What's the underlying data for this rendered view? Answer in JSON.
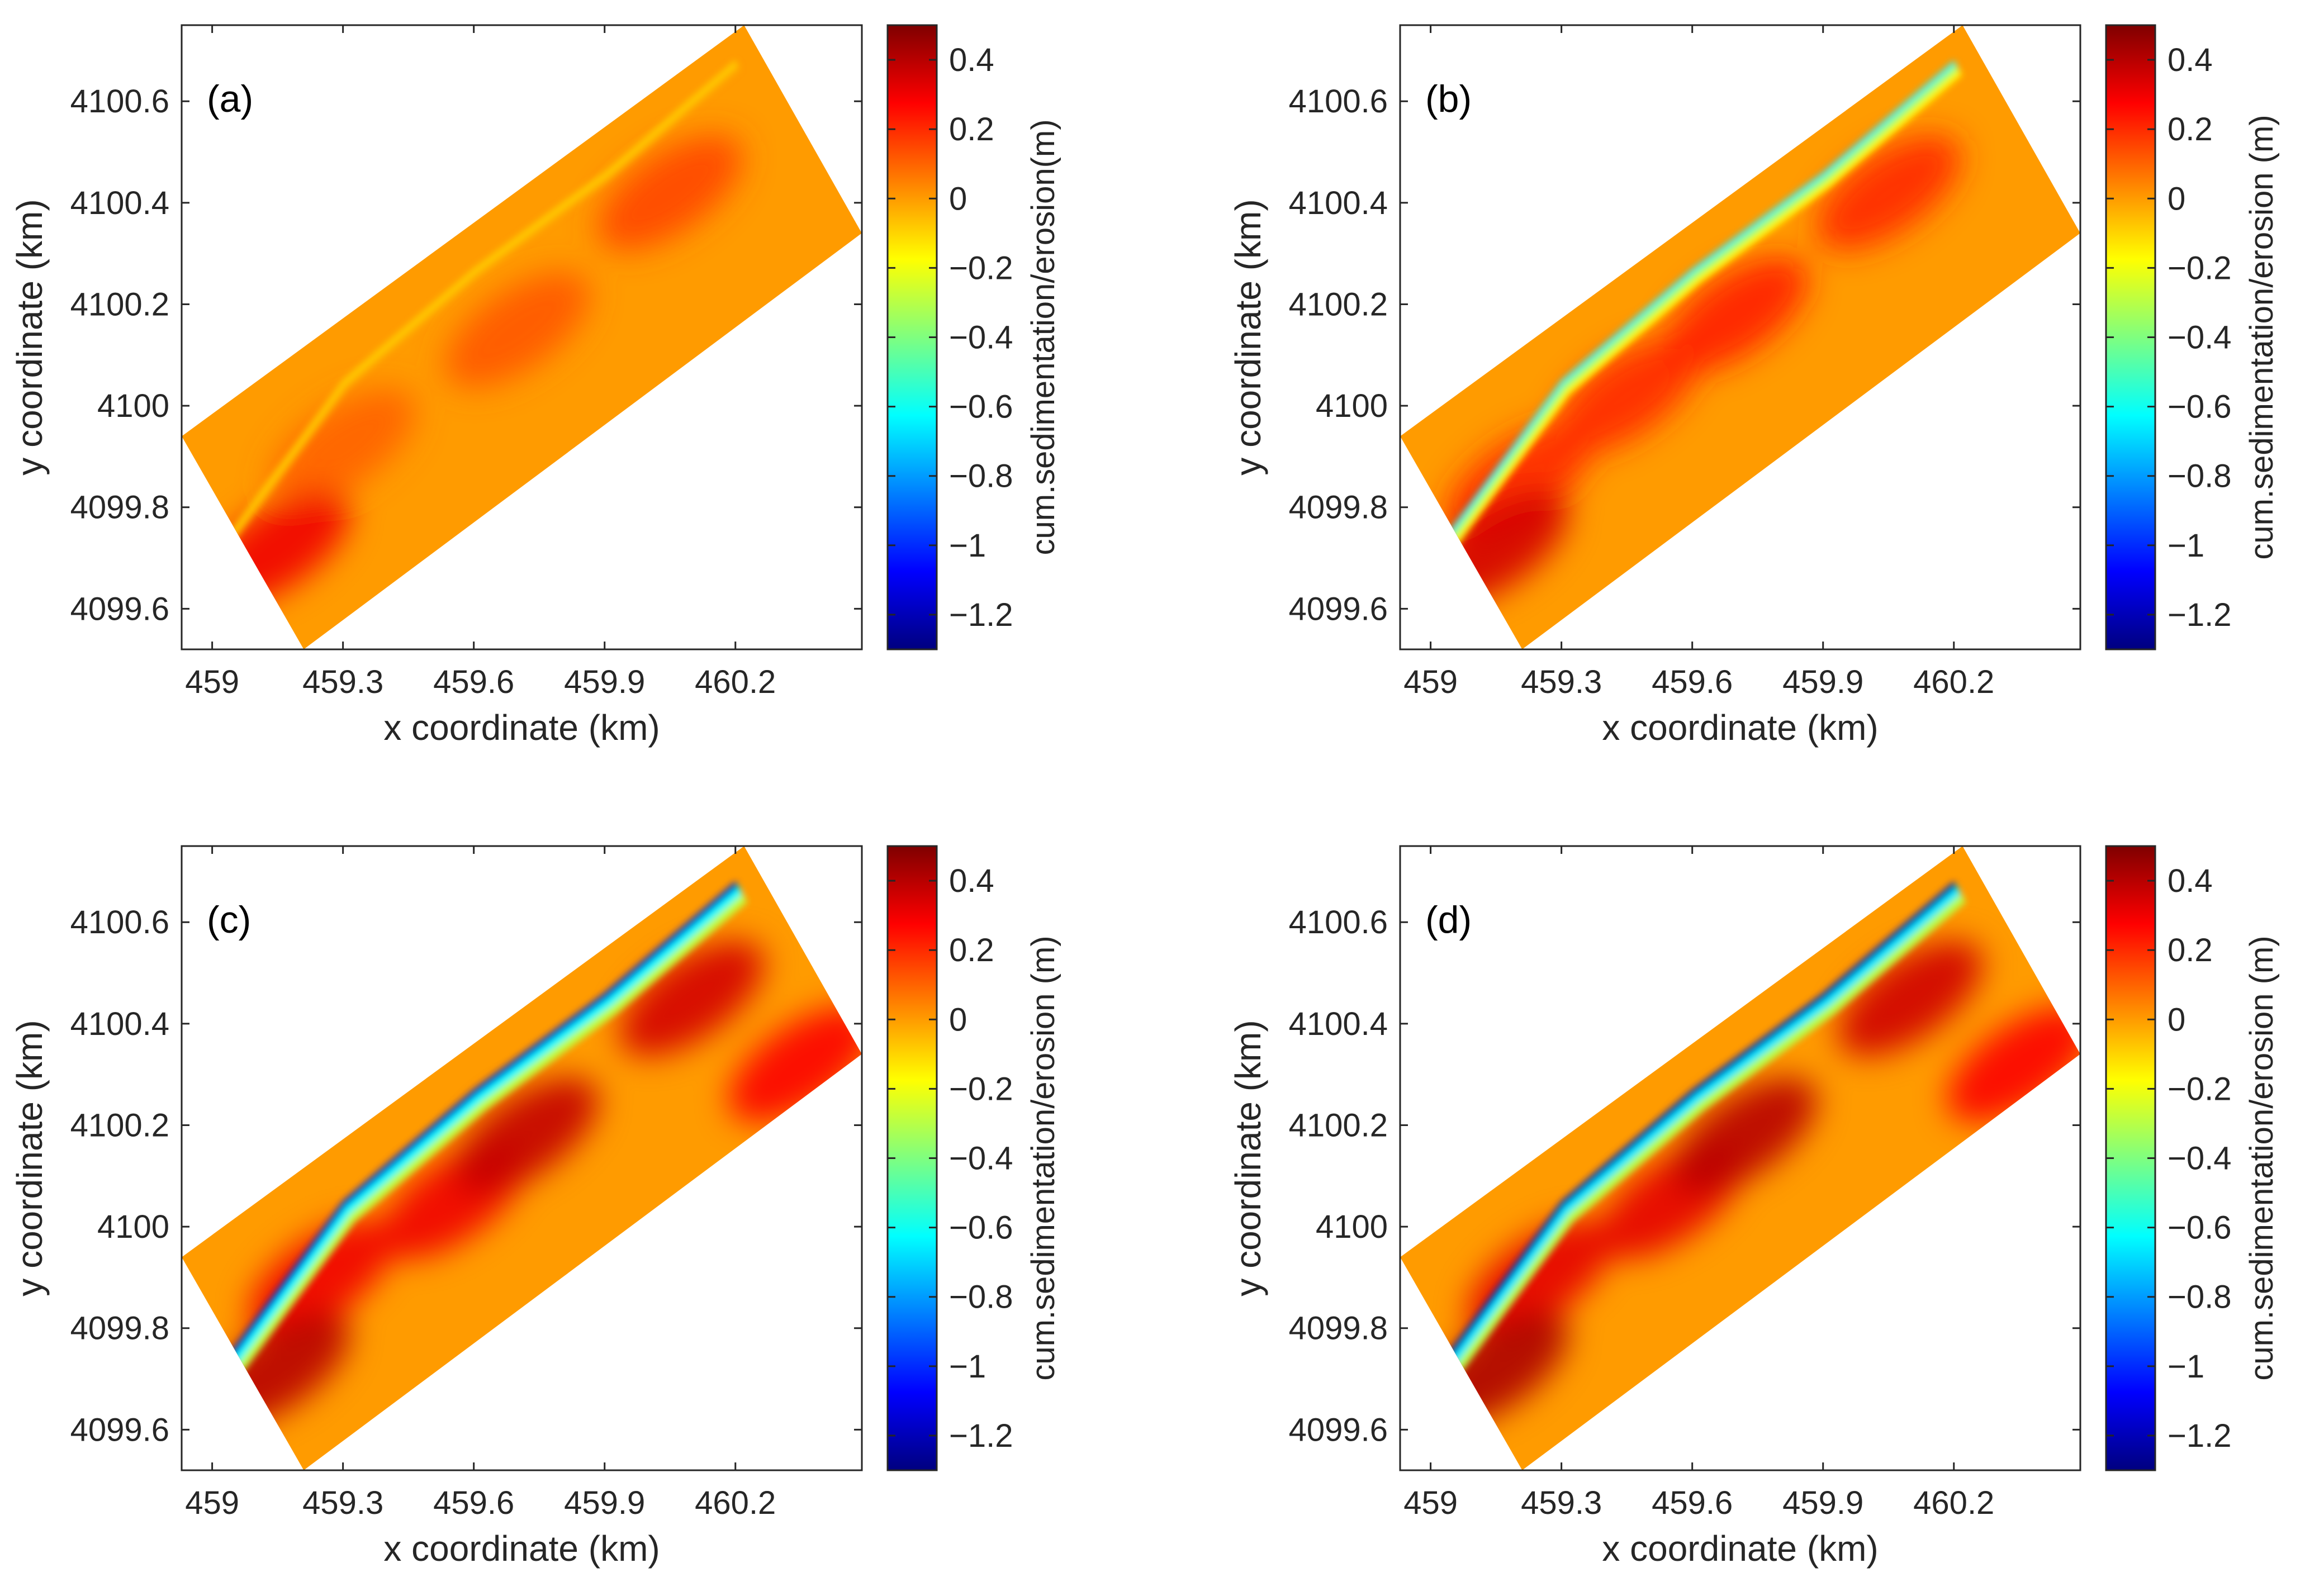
{
  "figure": {
    "colormap": [
      "#00007f",
      "#0000ff",
      "#007fff",
      "#00ffff",
      "#7fff7f",
      "#ffff00",
      "#ff7f00",
      "#ff0000",
      "#7f0000"
    ],
    "colors": {
      "domain_fill": "#ff9500",
      "frame": "#262626",
      "text": "#262626"
    }
  },
  "chart_data": [
    {
      "type": "heatmap",
      "panel_label": "(a)",
      "xlabel": "x coordinate (km)",
      "ylabel": "y coordinate (km)",
      "colorbar_label": "cum.sedimentation/erosion(m)",
      "xlim": [
        458.93,
        460.49
      ],
      "ylim": [
        4099.52,
        4100.75
      ],
      "xticks": [
        459,
        459.3,
        459.6,
        459.9,
        460.2
      ],
      "xtick_labels": [
        "459",
        "459.3",
        "459.6",
        "459.9",
        "460.2"
      ],
      "yticks": [
        4099.6,
        4099.8,
        4100,
        4100.2,
        4100.4,
        4100.6
      ],
      "ytick_labels": [
        "4099.6",
        "4099.8",
        "4100",
        "4100.2",
        "4100.4",
        "4100.6"
      ],
      "clim": [
        -1.3,
        0.5
      ],
      "cticks": [
        0.4,
        0.2,
        0,
        -0.2,
        -0.4,
        -0.6,
        -0.8,
        -1,
        -1.2
      ],
      "ctick_labels": [
        "0.4",
        "0.2",
        "0",
        "−0.2",
        "−0.4",
        "−0.6",
        "−0.8",
        "−1",
        "−1.2"
      ],
      "domain_polygon": [
        [
          458.93,
          4099.94
        ],
        [
          460.22,
          4100.75
        ],
        [
          460.49,
          4100.34
        ],
        [
          459.21,
          4099.52
        ]
      ],
      "shoreline": [
        [
          459.04,
          4099.75
        ],
        [
          459.3,
          4100.05
        ],
        [
          459.6,
          4100.27
        ],
        [
          459.9,
          4100.46
        ],
        [
          460.2,
          4100.68
        ]
      ],
      "nearshore_band": {
        "min_value": -0.12,
        "band_width_km": 0.02
      },
      "hotspots": [
        [
          459.3,
          4099.92,
          0.1
        ],
        [
          459.7,
          4100.15,
          0.12
        ],
        [
          460.05,
          4100.42,
          0.15
        ],
        [
          459.15,
          4099.72,
          0.3
        ]
      ]
    },
    {
      "type": "heatmap",
      "panel_label": "(b)",
      "xlabel": "x coordinate (km)",
      "ylabel": "y coordinate (km)",
      "colorbar_label": "cum.sedimentation/erosion (m)",
      "xlim": [
        458.93,
        460.49
      ],
      "ylim": [
        4099.52,
        4100.75
      ],
      "xticks": [
        459,
        459.3,
        459.6,
        459.9,
        460.2
      ],
      "xtick_labels": [
        "459",
        "459.3",
        "459.6",
        "459.9",
        "460.2"
      ],
      "yticks": [
        4099.6,
        4099.8,
        4100,
        4100.2,
        4100.4,
        4100.6
      ],
      "ytick_labels": [
        "4099.6",
        "4099.8",
        "4100",
        "4100.2",
        "4100.4",
        "4100.6"
      ],
      "clim": [
        -1.3,
        0.5
      ],
      "cticks": [
        0.4,
        0.2,
        0,
        -0.2,
        -0.4,
        -0.6,
        -0.8,
        -1,
        -1.2
      ],
      "ctick_labels": [
        "0.4",
        "0.2",
        "0",
        "−0.2",
        "−0.4",
        "−0.6",
        "−0.8",
        "−1",
        "−1.2"
      ],
      "domain_polygon": [
        [
          458.93,
          4099.94
        ],
        [
          460.22,
          4100.75
        ],
        [
          460.49,
          4100.34
        ],
        [
          459.21,
          4099.52
        ]
      ],
      "shoreline": [
        [
          459.04,
          4099.75
        ],
        [
          459.3,
          4100.05
        ],
        [
          459.6,
          4100.27
        ],
        [
          459.9,
          4100.46
        ],
        [
          460.2,
          4100.68
        ]
      ],
      "nearshore_band": {
        "min_value": -0.65,
        "band_width_km": 0.035
      },
      "hotspots": [
        [
          459.2,
          4099.85,
          0.2
        ],
        [
          459.45,
          4100.02,
          0.2
        ],
        [
          459.7,
          4100.18,
          0.22
        ],
        [
          460.05,
          4100.42,
          0.2
        ],
        [
          459.15,
          4099.72,
          0.35
        ]
      ]
    },
    {
      "type": "heatmap",
      "panel_label": "(c)",
      "xlabel": "x coordinate (km)",
      "ylabel": "y coordinate (km)",
      "colorbar_label": "cum.sedimentation/erosion (m)",
      "xlim": [
        458.93,
        460.49
      ],
      "ylim": [
        4099.52,
        4100.75
      ],
      "xticks": [
        459,
        459.3,
        459.6,
        459.9,
        460.2
      ],
      "xtick_labels": [
        "459",
        "459.3",
        "459.6",
        "459.9",
        "460.2"
      ],
      "yticks": [
        4099.6,
        4099.8,
        4100,
        4100.2,
        4100.4,
        4100.6
      ],
      "ytick_labels": [
        "4099.6",
        "4099.8",
        "4100",
        "4100.2",
        "4100.4",
        "4100.6"
      ],
      "clim": [
        -1.3,
        0.5
      ],
      "cticks": [
        0.4,
        0.2,
        0,
        -0.2,
        -0.4,
        -0.6,
        -0.8,
        -1,
        -1.2
      ],
      "ctick_labels": [
        "0.4",
        "0.2",
        "0",
        "−0.2",
        "−0.4",
        "−0.6",
        "−0.8",
        "−1",
        "−1.2"
      ],
      "domain_polygon": [
        [
          458.93,
          4099.94
        ],
        [
          460.22,
          4100.75
        ],
        [
          460.49,
          4100.34
        ],
        [
          459.21,
          4099.52
        ]
      ],
      "shoreline": [
        [
          459.04,
          4099.75
        ],
        [
          459.3,
          4100.05
        ],
        [
          459.6,
          4100.27
        ],
        [
          459.9,
          4100.46
        ],
        [
          460.2,
          4100.68
        ]
      ],
      "nearshore_band": {
        "min_value": -1.15,
        "band_width_km": 0.05
      },
      "hotspots": [
        [
          459.25,
          4099.9,
          0.3
        ],
        [
          459.55,
          4100.05,
          0.3
        ],
        [
          459.72,
          4100.18,
          0.38
        ],
        [
          460.1,
          4100.45,
          0.35
        ],
        [
          460.35,
          4100.32,
          0.28
        ],
        [
          459.15,
          4099.72,
          0.4
        ]
      ]
    },
    {
      "type": "heatmap",
      "panel_label": "(d)",
      "xlabel": "x coordinate (km)",
      "ylabel": "y coordinate (km)",
      "colorbar_label": "cum.sedimentation/erosion (m)",
      "xlim": [
        458.93,
        460.49
      ],
      "ylim": [
        4099.52,
        4100.75
      ],
      "xticks": [
        459,
        459.3,
        459.6,
        459.9,
        460.2
      ],
      "xtick_labels": [
        "459",
        "459.3",
        "459.6",
        "459.9",
        "460.2"
      ],
      "yticks": [
        4099.6,
        4099.8,
        4100,
        4100.2,
        4100.4,
        4100.6
      ],
      "ytick_labels": [
        "4099.6",
        "4099.8",
        "4100",
        "4100.2",
        "4100.4",
        "4100.6"
      ],
      "clim": [
        -1.3,
        0.5
      ],
      "cticks": [
        0.4,
        0.2,
        0,
        -0.2,
        -0.4,
        -0.6,
        -0.8,
        -1,
        -1.2
      ],
      "ctick_labels": [
        "0.4",
        "0.2",
        "0",
        "−0.2",
        "−0.4",
        "−0.6",
        "−0.8",
        "−1",
        "−1.2"
      ],
      "domain_polygon": [
        [
          458.93,
          4099.94
        ],
        [
          460.22,
          4100.75
        ],
        [
          460.49,
          4100.34
        ],
        [
          459.21,
          4099.52
        ]
      ],
      "shoreline": [
        [
          459.04,
          4099.75
        ],
        [
          459.3,
          4100.05
        ],
        [
          459.6,
          4100.27
        ],
        [
          459.9,
          4100.46
        ],
        [
          460.2,
          4100.68
        ]
      ],
      "nearshore_band": {
        "min_value": -1.2,
        "band_width_km": 0.05
      },
      "hotspots": [
        [
          459.25,
          4099.9,
          0.32
        ],
        [
          459.55,
          4100.05,
          0.32
        ],
        [
          459.72,
          4100.18,
          0.4
        ],
        [
          460.1,
          4100.45,
          0.36
        ],
        [
          460.35,
          4100.32,
          0.28
        ],
        [
          459.15,
          4099.72,
          0.42
        ]
      ]
    }
  ]
}
